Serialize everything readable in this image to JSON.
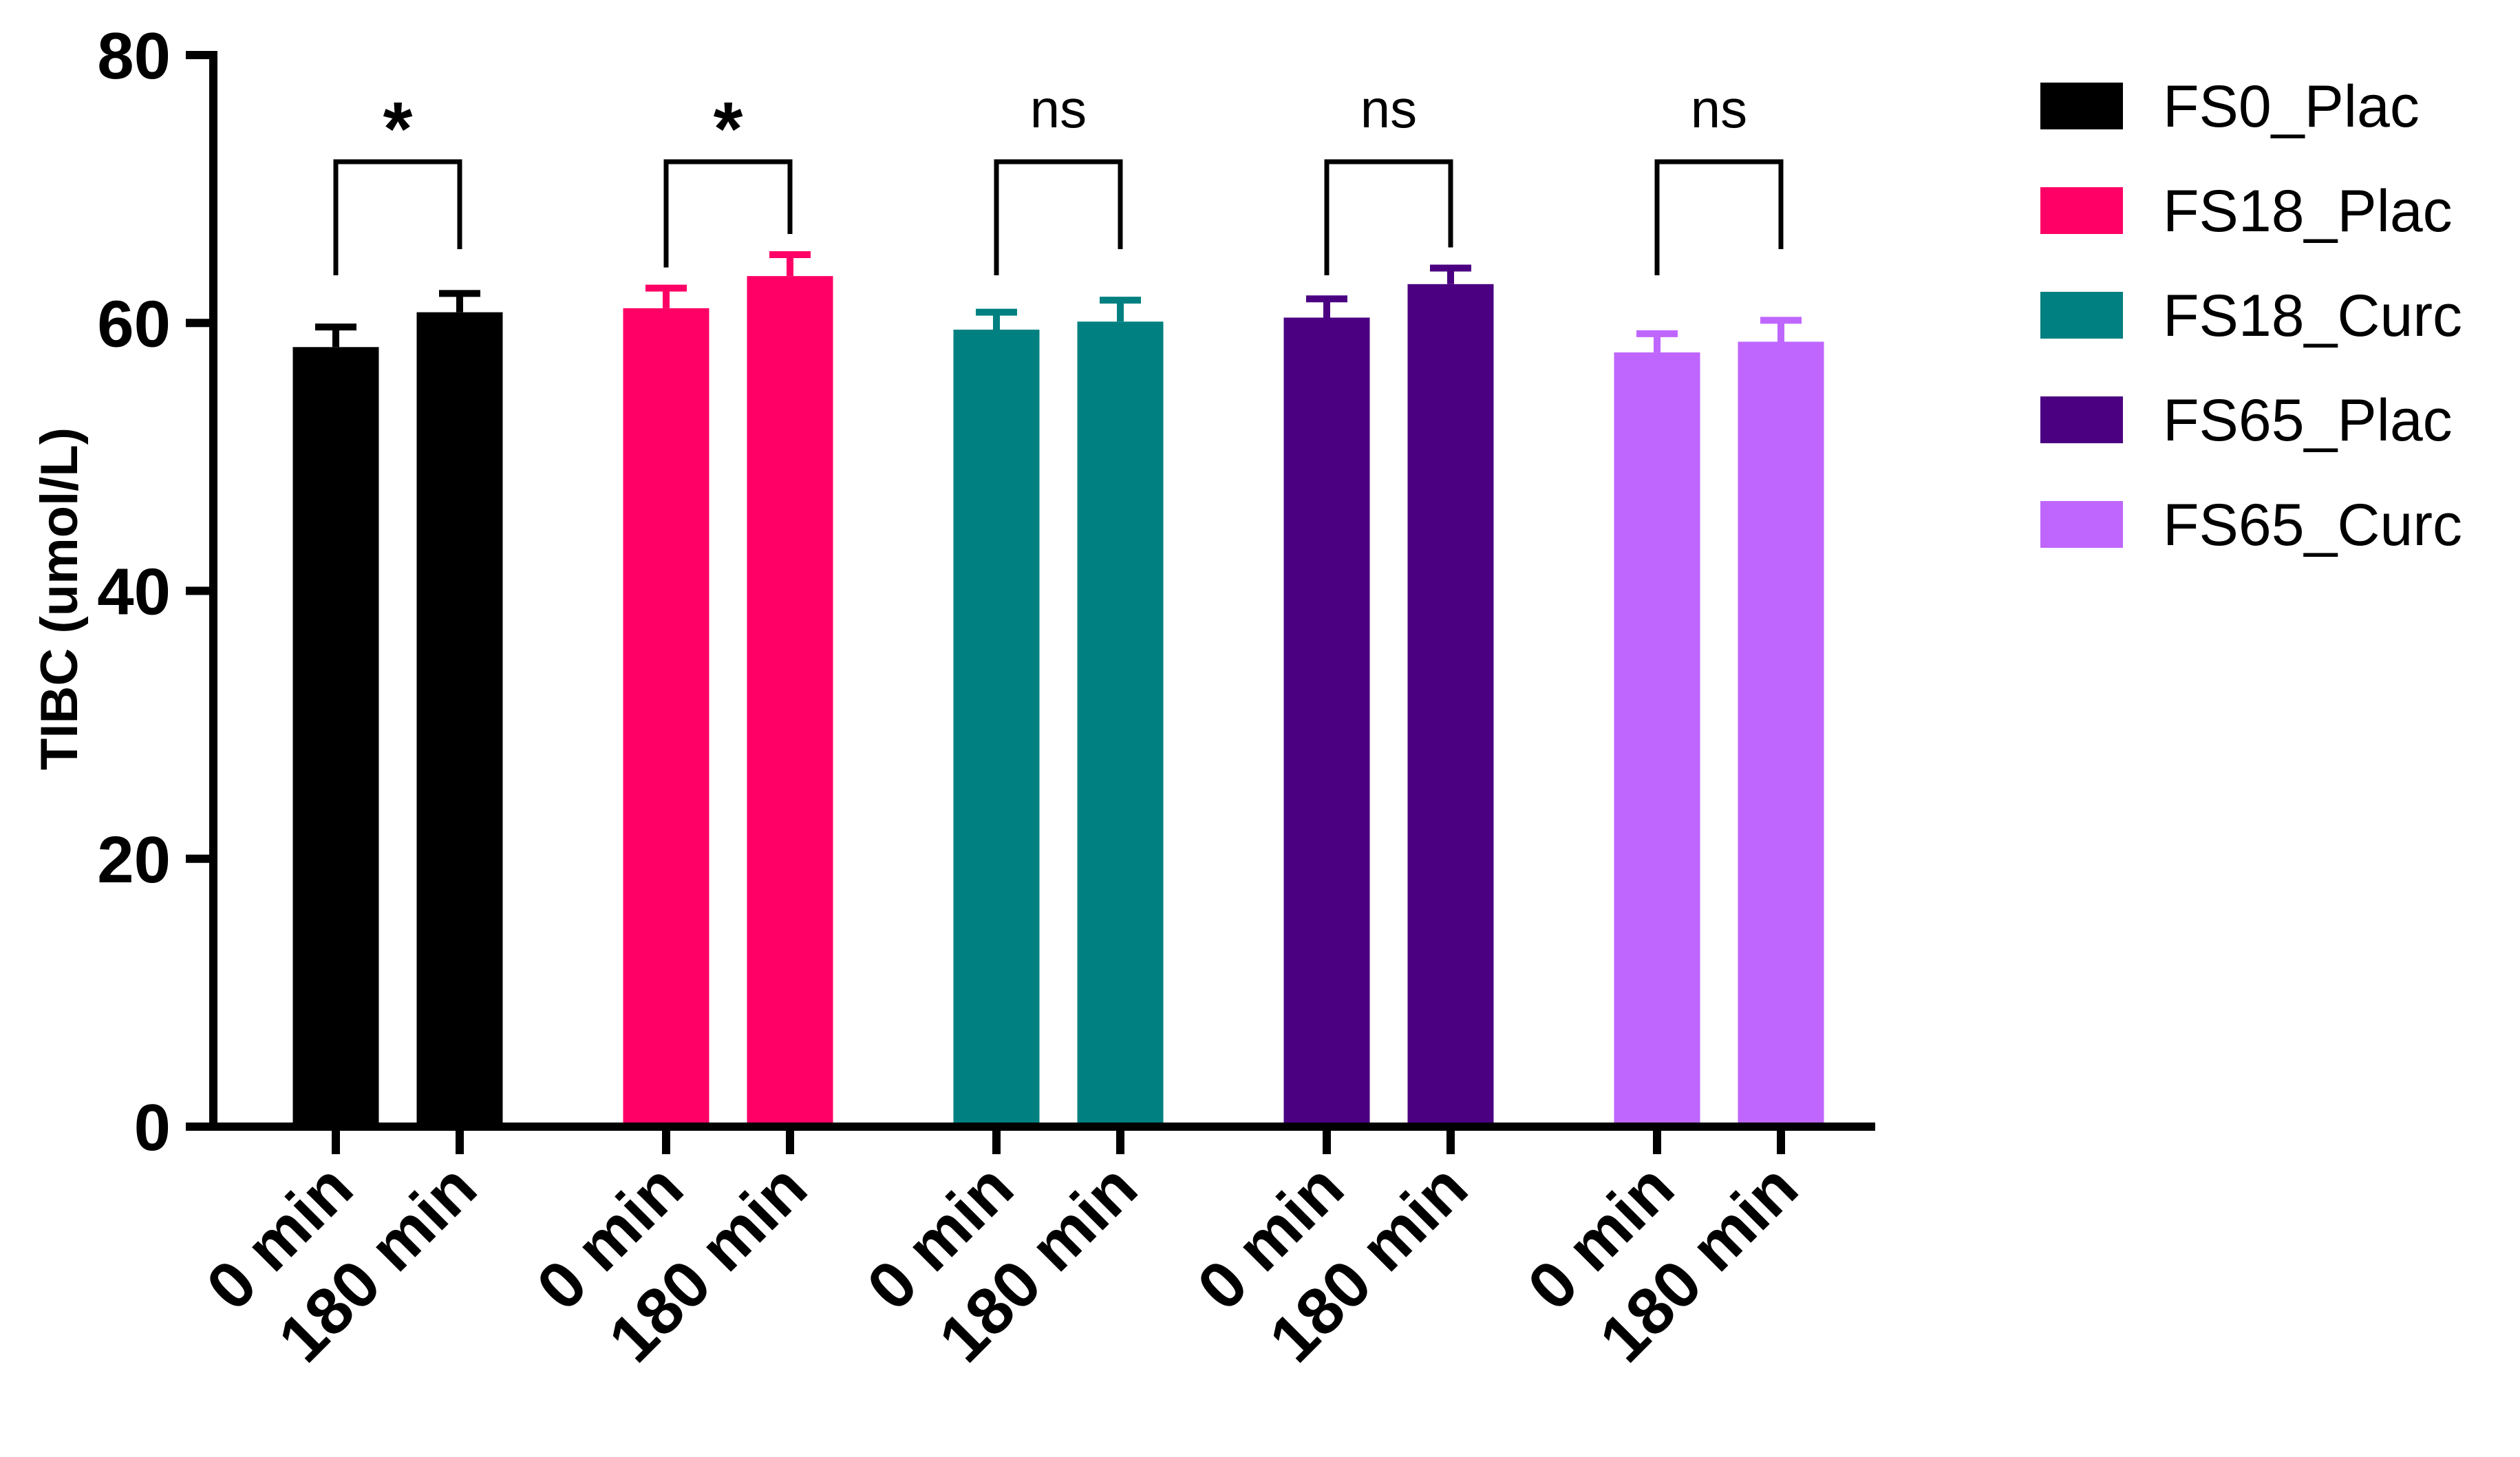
{
  "chart_data": {
    "type": "bar",
    "ylabel": "TIBC (umol/L)",
    "ylim": [
      0,
      80
    ],
    "yticks": [
      "0",
      "20",
      "40",
      "60",
      "80"
    ],
    "grid": false,
    "legend_position": "right",
    "groups": [
      {
        "name": "FS0_Plac",
        "color": "#000000",
        "bars": [
          {
            "label": "0 min",
            "value": 58.2,
            "error": 1.5
          },
          {
            "label": "180 min",
            "value": 60.8,
            "error": 1.4
          }
        ],
        "significance": "*"
      },
      {
        "name": "FS18_Plac",
        "color": "#FF0066",
        "bars": [
          {
            "label": "0 min",
            "value": 61.1,
            "error": 1.5
          },
          {
            "label": "180 min",
            "value": 63.5,
            "error": 1.6
          }
        ],
        "significance": "*"
      },
      {
        "name": "FS18_Curc",
        "color": "#008080",
        "bars": [
          {
            "label": "0 min",
            "value": 59.5,
            "error": 1.3
          },
          {
            "label": "180 min",
            "value": 60.1,
            "error": 1.6
          }
        ],
        "significance": "ns"
      },
      {
        "name": "FS65_Plac",
        "color": "#4B0082",
        "bars": [
          {
            "label": "0 min",
            "value": 60.4,
            "error": 1.4
          },
          {
            "label": "180 min",
            "value": 62.9,
            "error": 1.2
          }
        ],
        "significance": "ns"
      },
      {
        "name": "FS65_Curc",
        "color": "#BF66FF",
        "bars": [
          {
            "label": "0 min",
            "value": 57.8,
            "error": 1.4
          },
          {
            "label": "180 min",
            "value": 58.6,
            "error": 1.6
          }
        ],
        "significance": "ns"
      }
    ]
  }
}
